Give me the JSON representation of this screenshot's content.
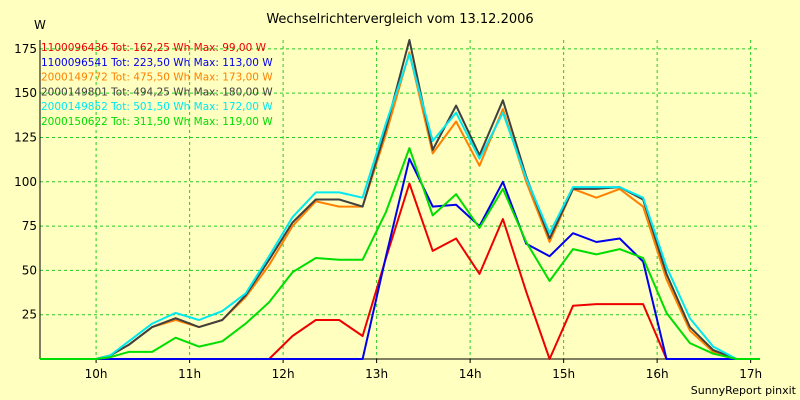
{
  "colors": {
    "background": "#ffffc0",
    "grid": "#22cc22",
    "axis": "#000000"
  },
  "chart_data": {
    "type": "line",
    "title": "Wechselrichtervergleich vom 13.12.2006",
    "ylabel": "W",
    "footer": "SunnyReport pinxit",
    "xlim": [
      9.4,
      17.1
    ],
    "ylim": [
      0,
      180
    ],
    "yticks": [
      25,
      50,
      75,
      100,
      125,
      150,
      175
    ],
    "xticks": [
      {
        "value": 10,
        "label": "10h"
      },
      {
        "value": 11,
        "label": "11h"
      },
      {
        "value": 12,
        "label": "12h"
      },
      {
        "value": 13,
        "label": "13h"
      },
      {
        "value": 14,
        "label": "14h"
      },
      {
        "value": 15,
        "label": "15h"
      },
      {
        "value": 16,
        "label": "16h"
      },
      {
        "value": 17,
        "label": "17h"
      }
    ],
    "grid": true,
    "legend_position": "top-left",
    "series": [
      {
        "name": "1100096436 Tot: 162,25 Wh Max: 99,00 W",
        "color": "#ee0000",
        "x": [
          9.4,
          10.0,
          10.75,
          11.6,
          11.85,
          12.1,
          12.35,
          12.6,
          12.85,
          13.1,
          13.35,
          13.6,
          13.85,
          14.1,
          14.35,
          14.6,
          14.85,
          15.1,
          15.35,
          15.6,
          15.85,
          16.1,
          16.35,
          16.6,
          16.85,
          17.1
        ],
        "y": [
          0,
          0,
          0,
          0,
          0,
          13,
          22,
          22,
          13,
          57,
          99,
          61,
          68,
          48,
          79,
          38,
          0,
          30,
          31,
          31,
          31,
          0,
          0,
          0,
          0,
          0
        ]
      },
      {
        "name": "1100096541 Tot: 223,50 Wh Max: 113,00 W",
        "color": "#0000ee",
        "x": [
          9.4,
          10.0,
          10.75,
          11.6,
          11.85,
          12.1,
          12.35,
          12.6,
          12.85,
          13.1,
          13.35,
          13.6,
          13.85,
          14.1,
          14.35,
          14.6,
          14.85,
          15.1,
          15.35,
          15.6,
          15.85,
          16.1,
          16.35,
          16.6,
          16.85,
          17.1
        ],
        "y": [
          0,
          0,
          0,
          0,
          0,
          0,
          0,
          0,
          0,
          58,
          113,
          86,
          87,
          75,
          100,
          65,
          58,
          71,
          66,
          68,
          55,
          0,
          0,
          0,
          0,
          0
        ]
      },
      {
        "name": "2000149772 Tot: 475,50 Wh Max: 173,00 W",
        "color": "#ff8000",
        "x": [
          9.4,
          10.0,
          10.15,
          10.35,
          10.6,
          10.85,
          11.1,
          11.35,
          11.6,
          11.85,
          12.1,
          12.35,
          12.6,
          12.85,
          13.1,
          13.35,
          13.6,
          13.85,
          14.1,
          14.35,
          14.6,
          14.85,
          15.1,
          15.35,
          15.6,
          15.85,
          16.1,
          16.35,
          16.6,
          16.85,
          17.1
        ],
        "y": [
          0,
          0,
          2,
          8,
          18,
          22,
          18,
          22,
          35,
          53,
          75,
          89,
          86,
          86,
          127,
          173,
          116,
          134,
          109,
          141,
          100,
          66,
          96,
          91,
          96,
          86,
          45,
          16,
          4,
          0,
          0
        ]
      },
      {
        "name": "2000149801 Tot: 494,25 Wh Max: 180,00 W",
        "color": "#404040",
        "x": [
          9.4,
          10.0,
          10.15,
          10.35,
          10.6,
          10.85,
          11.1,
          11.35,
          11.6,
          11.85,
          12.1,
          12.35,
          12.6,
          12.85,
          13.1,
          13.35,
          13.6,
          13.85,
          14.1,
          14.35,
          14.6,
          14.85,
          15.1,
          15.35,
          15.6,
          15.85,
          16.1,
          16.35,
          16.6,
          16.85,
          17.1
        ],
        "y": [
          0,
          0,
          2,
          8,
          18,
          23,
          18,
          22,
          36,
          56,
          77,
          90,
          90,
          86,
          130,
          180,
          118,
          143,
          115,
          146,
          103,
          68,
          96,
          96,
          97,
          90,
          48,
          18,
          5,
          0,
          0
        ]
      },
      {
        "name": "2000149852 Tot: 501,50 Wh Max: 172,00 W",
        "color": "#00e8f0",
        "x": [
          9.4,
          10.0,
          10.15,
          10.35,
          10.6,
          10.85,
          11.1,
          11.35,
          11.6,
          11.85,
          12.1,
          12.35,
          12.6,
          12.85,
          13.1,
          13.35,
          13.6,
          13.85,
          14.1,
          14.35,
          14.6,
          14.85,
          15.1,
          15.35,
          15.6,
          15.85,
          16.1,
          16.35,
          16.6,
          16.85,
          17.1
        ],
        "y": [
          0,
          0,
          2,
          10,
          20,
          26,
          22,
          27,
          37,
          58,
          80,
          94,
          94,
          91,
          133,
          172,
          123,
          139,
          113,
          139,
          102,
          71,
          97,
          97,
          97,
          91,
          52,
          23,
          7,
          0,
          0
        ]
      },
      {
        "name": "2000150622 Tot: 311,50 Wh Max: 119,00 W",
        "color": "#00dd00",
        "x": [
          9.4,
          10.0,
          10.15,
          10.35,
          10.6,
          10.85,
          11.1,
          11.35,
          11.6,
          11.85,
          12.1,
          12.35,
          12.6,
          12.85,
          13.1,
          13.35,
          13.6,
          13.85,
          14.1,
          14.35,
          14.6,
          14.85,
          15.1,
          15.35,
          15.6,
          15.85,
          16.1,
          16.35,
          16.6,
          16.85,
          17.1
        ],
        "y": [
          0,
          0,
          1,
          4,
          4,
          12,
          7,
          10,
          20,
          32,
          49,
          57,
          56,
          56,
          83,
          119,
          81,
          93,
          74,
          96,
          66,
          44,
          62,
          59,
          62,
          57,
          26,
          9,
          3,
          0,
          0
        ]
      }
    ]
  }
}
